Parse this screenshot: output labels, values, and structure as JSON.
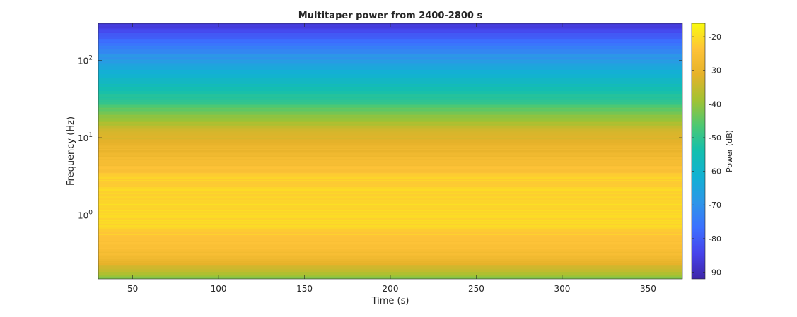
{
  "chart_data": {
    "type": "heatmap",
    "title": "Multitaper power from 2400-2800 s",
    "xlabel": "Time (s)",
    "ylabel": "Frequency (Hz)",
    "xlim": [
      30,
      370
    ],
    "ylim_hz": [
      0.15,
      300
    ],
    "y_scale": "log",
    "x_ticks": [
      50,
      100,
      150,
      200,
      250,
      300,
      350
    ],
    "y_ticks": [
      {
        "value": 1,
        "base": "10",
        "exp": "0"
      },
      {
        "value": 10,
        "base": "10",
        "exp": "1"
      },
      {
        "value": 100,
        "base": "10",
        "exp": "2"
      }
    ],
    "colorbar": {
      "label": "Power (dB)",
      "range": [
        -92,
        -16
      ],
      "ticks": [
        -20,
        -30,
        -40,
        -50,
        -60,
        -70,
        -80,
        -90
      ],
      "colormap": "parula"
    },
    "frequency_profile": {
      "frequency_hz": [
        0.15,
        0.2,
        0.3,
        0.5,
        0.8,
        1.0,
        2.0,
        3.0,
        5.0,
        8.0,
        10,
        15,
        20,
        30,
        50,
        80,
        100,
        150,
        200,
        300
      ],
      "power_db": [
        -42,
        -35,
        -27,
        -23,
        -21,
        -20,
        -21,
        -22,
        -27,
        -30,
        -32,
        -37,
        -42,
        -50,
        -57,
        -64,
        -68,
        -74,
        -80,
        -87
      ]
    },
    "grid": false
  }
}
